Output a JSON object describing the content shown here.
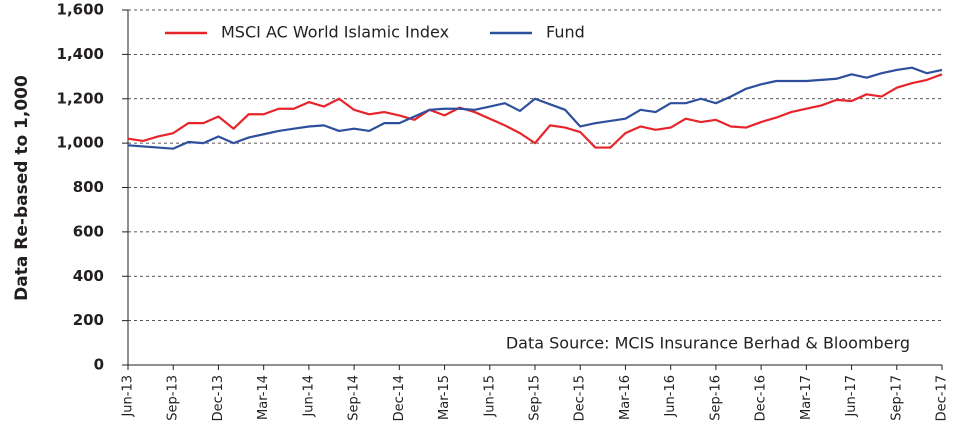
{
  "chart_data": {
    "type": "line",
    "ylabel": "Data Re-based to 1,000",
    "annotation": "Data Source: MCIS Insurance Berhad & Bloomberg",
    "categories": [
      "Jun-13",
      null,
      null,
      "Sep-13",
      null,
      null,
      "Dec-13",
      null,
      null,
      "Mar-14",
      null,
      null,
      "Jun-14",
      null,
      null,
      "Sep-14",
      null,
      null,
      "Dec-14",
      null,
      null,
      "Mar-15",
      null,
      null,
      "Jun-15",
      null,
      null,
      "Sep-15",
      null,
      null,
      "Dec-15",
      null,
      null,
      "Mar-16",
      null,
      null,
      "Jun-16",
      null,
      null,
      "Sep-16",
      null,
      null,
      "Dec-16",
      null,
      null,
      "Mar-17",
      null,
      null,
      "Jun-17",
      null,
      null,
      "Sep-17",
      null,
      null,
      "Dec-17"
    ],
    "series": [
      {
        "name": "MSCI AC World Islamic Index",
        "color": "#e8242b",
        "values": [
          1020,
          1010,
          1030,
          1045,
          1090,
          1090,
          1120,
          1065,
          1130,
          1130,
          1155,
          1155,
          1185,
          1165,
          1200,
          1150,
          1130,
          1140,
          1125,
          1105,
          1150,
          1125,
          1160,
          1140,
          1110,
          1080,
          1045,
          1000,
          1080,
          1070,
          1050,
          980,
          980,
          1045,
          1075,
          1060,
          1070,
          1110,
          1095,
          1105,
          1075,
          1070,
          1095,
          1115,
          1140,
          1155,
          1170,
          1195,
          1190,
          1220,
          1210,
          1250,
          1270,
          1285,
          1310
        ]
      },
      {
        "name": "Fund",
        "color": "#2e4f9c",
        "values": [
          990,
          985,
          980,
          975,
          1005,
          1000,
          1030,
          1000,
          1025,
          1040,
          1055,
          1065,
          1075,
          1080,
          1055,
          1065,
          1055,
          1090,
          1090,
          1120,
          1150,
          1155,
          1155,
          1150,
          1165,
          1180,
          1145,
          1200,
          1175,
          1150,
          1075,
          1090,
          1100,
          1110,
          1150,
          1140,
          1180,
          1180,
          1200,
          1180,
          1210,
          1245,
          1265,
          1280,
          1280,
          1280,
          1285,
          1290,
          1310,
          1295,
          1315,
          1330,
          1340,
          1315,
          1330
        ]
      }
    ],
    "ylim": [
      0,
      1600
    ],
    "yticks": [
      0,
      200,
      400,
      600,
      800,
      {
        "value": 1000,
        "label": "1,000"
      },
      {
        "value": 1200,
        "label": "1,200"
      },
      {
        "value": 1400,
        "label": "1,400"
      },
      {
        "value": 1600,
        "label": "1,600"
      }
    ],
    "grid": true
  }
}
